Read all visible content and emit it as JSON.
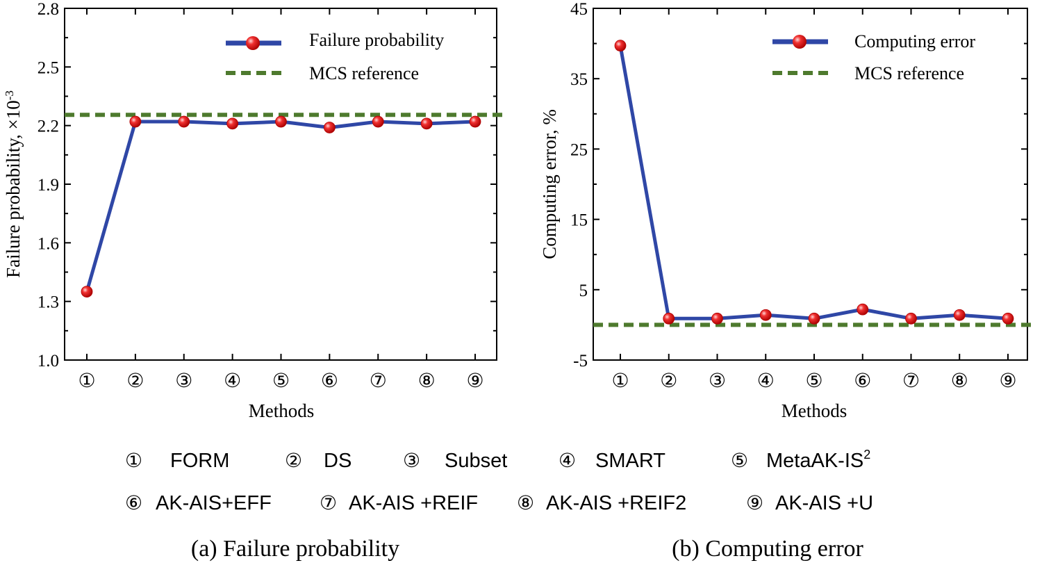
{
  "chart_data": [
    {
      "type": "line",
      "title": "Failure probability",
      "caption": "(a) Failure probability",
      "xlabel": "Methods",
      "ylabel": "Failure probability, ×10",
      "ylabel_exponent": "-3",
      "ylim": [
        1.0,
        2.8
      ],
      "yticks": [
        1.0,
        1.3,
        1.6,
        1.9,
        2.2,
        2.5,
        2.8
      ],
      "ytick_labels": [
        "1.0",
        "1.3",
        "1.6",
        "1.9",
        "2.2",
        "2.5",
        "2.8"
      ],
      "categories": [
        "①",
        "②",
        "③",
        "④",
        "⑤",
        "⑥",
        "⑦",
        "⑧",
        "⑨"
      ],
      "series": [
        {
          "name": "Failure probability",
          "values": [
            1.35,
            2.22,
            2.22,
            2.21,
            2.22,
            2.19,
            2.22,
            2.21,
            2.22
          ]
        }
      ],
      "reference": {
        "name": "MCS reference",
        "value": 2.255
      },
      "legend": [
        "Failure probability",
        "MCS reference"
      ],
      "legend_position": "top-right"
    },
    {
      "type": "line",
      "title": "Computing error",
      "caption": "(b) Computing error",
      "xlabel": "Methods",
      "ylabel": "Computing error, %",
      "ylim": [
        -5,
        45
      ],
      "yticks": [
        -5,
        5,
        15,
        25,
        35,
        45
      ],
      "ytick_labels": [
        "-5",
        "5",
        "15",
        "25",
        "35",
        "45"
      ],
      "categories": [
        "①",
        "②",
        "③",
        "④",
        "⑤",
        "⑥",
        "⑦",
        "⑧",
        "⑨"
      ],
      "series": [
        {
          "name": "Computing error",
          "values": [
            39.7,
            0.9,
            0.9,
            1.4,
            0.9,
            2.2,
            0.9,
            1.4,
            0.9
          ]
        }
      ],
      "reference": {
        "name": "MCS reference",
        "value": 0
      },
      "legend": [
        "Computing error",
        "MCS reference"
      ],
      "legend_position": "top-right"
    }
  ],
  "methods_legend": [
    {
      "num": "①",
      "name": "FORM"
    },
    {
      "num": "②",
      "name": "DS"
    },
    {
      "num": "③",
      "name": "Subset"
    },
    {
      "num": "④",
      "name": "SMART"
    },
    {
      "num": "⑤",
      "name": "MetaAK-IS",
      "sup": "2"
    },
    {
      "num": "⑥",
      "name": "AK-AIS+EFF"
    },
    {
      "num": "⑦",
      "name": "AK-AIS +REIF"
    },
    {
      "num": "⑧",
      "name": "AK-AIS +REIF2"
    },
    {
      "num": "⑨",
      "name": "AK-AIS +U"
    }
  ],
  "colors": {
    "line": "#2f47a6",
    "reference": "#4e7a2e",
    "marker": "#e01b1b",
    "marker_highlight": "#ffd6d6"
  }
}
